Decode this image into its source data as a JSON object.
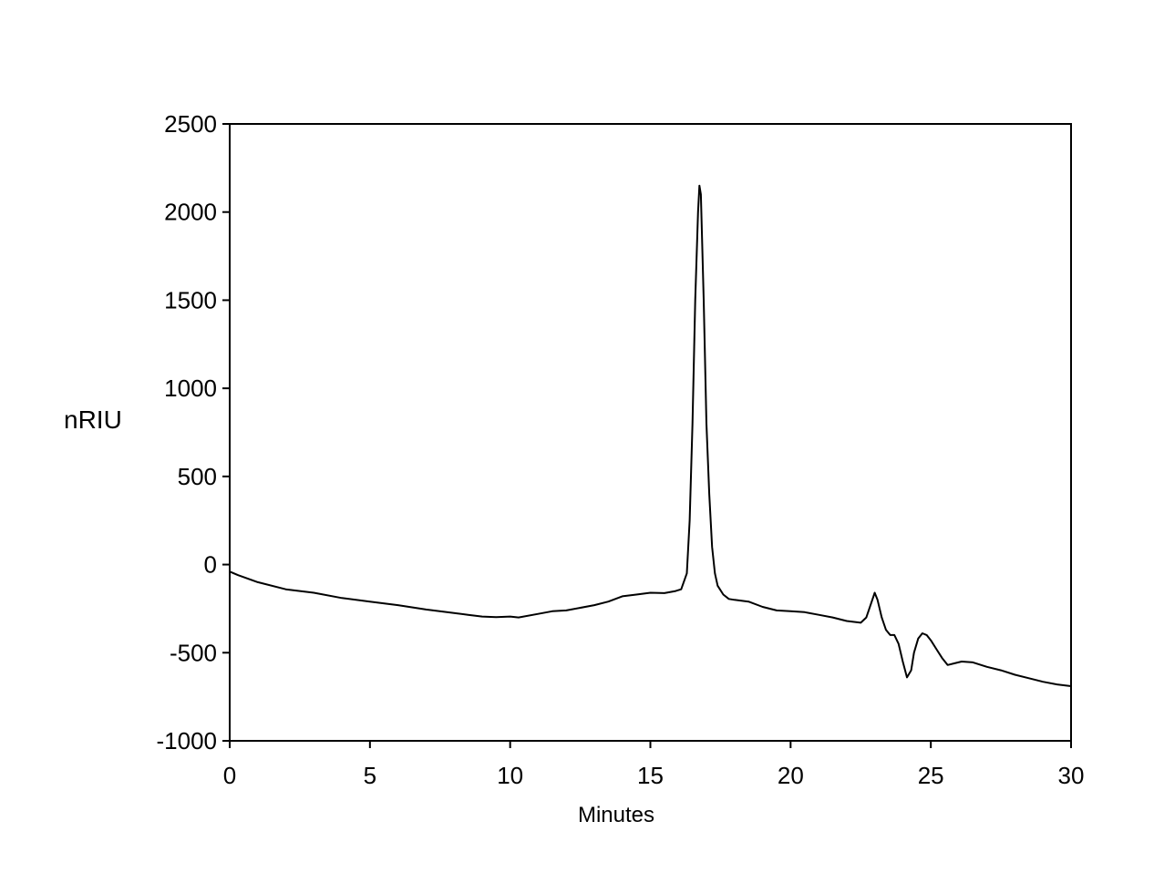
{
  "chart_data": {
    "type": "line",
    "title": "",
    "xlabel": "Minutes",
    "ylabel": "nRIU",
    "xlim": [
      0,
      30
    ],
    "ylim": [
      -1000,
      2500
    ],
    "x_ticks": [
      0,
      5,
      10,
      15,
      20,
      25,
      30
    ],
    "y_ticks": [
      2500,
      2000,
      1500,
      1000,
      500,
      0,
      -500,
      -1000
    ],
    "x_tick_labels": [
      "0",
      "5",
      "10",
      "15",
      "20",
      "25",
      "30"
    ],
    "y_tick_labels": [
      "2500",
      "2000",
      "1500",
      "1000",
      "500",
      "0",
      "-500",
      "-1000"
    ],
    "grid": false,
    "legend": "none",
    "colors": {
      "line": "#000000",
      "axes": "#000000",
      "background": "#ffffff"
    },
    "series": [
      {
        "x": [
          0,
          0.3,
          1,
          2,
          3,
          4,
          5,
          6,
          7,
          8,
          8.5,
          9,
          9.5,
          10,
          10.3,
          11,
          11.5,
          12,
          13,
          13.5,
          14,
          14.5,
          15,
          15.5,
          15.9,
          16.1,
          16.3,
          16.4,
          16.5,
          16.6,
          16.7,
          16.75,
          16.8,
          16.9,
          17.0,
          17.1,
          17.2,
          17.3,
          17.4,
          17.6,
          17.8,
          18,
          18.5,
          19,
          19.5,
          20,
          20.5,
          21,
          21.5,
          22,
          22.5,
          22.7,
          22.85,
          23.0,
          23.1,
          23.25,
          23.4,
          23.55,
          23.7,
          23.85,
          24.0,
          24.15,
          24.3,
          24.4,
          24.55,
          24.7,
          24.85,
          25.0,
          25.2,
          25.4,
          25.6,
          25.85,
          26.1,
          26.5,
          27,
          27.5,
          28,
          28.5,
          29,
          29.5,
          30
        ],
        "y": [
          -40,
          -60,
          -100,
          -140,
          -160,
          -190,
          -210,
          -230,
          -255,
          -275,
          -285,
          -295,
          -298,
          -295,
          -300,
          -280,
          -265,
          -260,
          -230,
          -210,
          -180,
          -170,
          -160,
          -162,
          -150,
          -140,
          -50,
          250,
          800,
          1500,
          2000,
          2150,
          2100,
          1500,
          800,
          400,
          100,
          -50,
          -120,
          -170,
          -195,
          -200,
          -210,
          -240,
          -260,
          -265,
          -270,
          -285,
          -300,
          -320,
          -330,
          -300,
          -230,
          -160,
          -200,
          -300,
          -370,
          -400,
          -400,
          -450,
          -550,
          -640,
          -600,
          -500,
          -420,
          -390,
          -400,
          -430,
          -480,
          -530,
          -570,
          -560,
          -550,
          -555,
          -580,
          -600,
          -625,
          -645,
          -665,
          -680,
          -690
        ]
      }
    ]
  }
}
